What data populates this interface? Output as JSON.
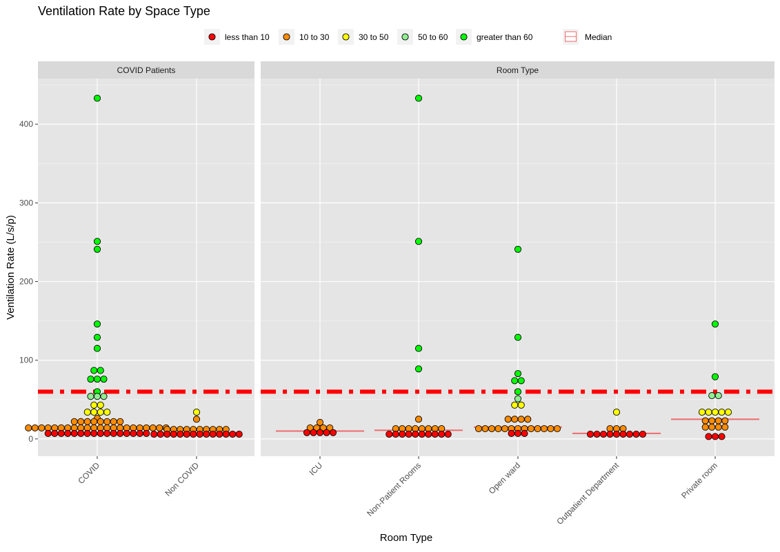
{
  "chart_data": {
    "type": "scatter",
    "title": "Ventilation Rate by Space Type",
    "xlabel": "Room Type",
    "ylabel": "Ventilation Rate (L/s/p)",
    "ylim": [
      -22,
      458
    ],
    "y_ticks": [
      0,
      100,
      200,
      300,
      400
    ],
    "threshold_line": 60,
    "legend": {
      "position": "top",
      "entries": [
        {
          "label": "less than 10",
          "color": "#ff0000"
        },
        {
          "label": "10 to 30",
          "color": "#ff8c00"
        },
        {
          "label": "30 to 50",
          "color": "#ffff00"
        },
        {
          "label": "50 to 60",
          "color": "#90ee90"
        },
        {
          "label": "greater than 60",
          "color": "#00ff00"
        }
      ],
      "median_label": "Median"
    },
    "colors": {
      "panel_bg": "#e5e5e5",
      "grid": "#ffffff",
      "strip_bg": "#d9d9d9",
      "median": "#ef6b6b",
      "threshold": "#ff0000"
    },
    "panels": [
      {
        "strip": "COVID Patients",
        "categories": [
          {
            "label": "COVID",
            "median": null,
            "groups": [
              {
                "y": 433,
                "n": 1,
                "color": "#00ff00"
              },
              {
                "y": 251,
                "n": 1,
                "color": "#00ff00"
              },
              {
                "y": 241,
                "n": 1,
                "color": "#00ff00"
              },
              {
                "y": 146,
                "n": 1,
                "color": "#00ff00"
              },
              {
                "y": 129,
                "n": 1,
                "color": "#00ff00"
              },
              {
                "y": 115,
                "n": 1,
                "color": "#00ff00"
              },
              {
                "y": 87,
                "n": 2,
                "color": "#00ff00"
              },
              {
                "y": 76,
                "n": 3,
                "color": "#00ff00"
              },
              {
                "y": 60,
                "n": 1,
                "color": "#00ff00"
              },
              {
                "y": 54,
                "n": 3,
                "color": "#90ee90"
              },
              {
                "y": 43,
                "n": 2,
                "color": "#ffff00"
              },
              {
                "y": 34,
                "n": 4,
                "color": "#ffff00"
              },
              {
                "y": 26,
                "n": 1,
                "color": "#ff8c00"
              },
              {
                "y": 22,
                "n": 8,
                "color": "#ff8c00"
              },
              {
                "y": 14,
                "n": 22,
                "color": "#ff8c00"
              },
              {
                "y": 7,
                "n": 16,
                "color": "#ff0000"
              }
            ]
          },
          {
            "label": "Non COVID",
            "median": 8,
            "groups": [
              {
                "y": 34,
                "n": 1,
                "color": "#ffff00"
              },
              {
                "y": 25,
                "n": 1,
                "color": "#ff8c00"
              },
              {
                "y": 12,
                "n": 10,
                "color": "#ff8c00"
              },
              {
                "y": 6,
                "n": 14,
                "color": "#ff0000"
              }
            ]
          }
        ]
      },
      {
        "strip": "Room Type",
        "categories": [
          {
            "label": "ICU",
            "median": 10,
            "groups": [
              {
                "y": 21,
                "n": 1,
                "color": "#ff8c00"
              },
              {
                "y": 14,
                "n": 4,
                "color": "#ff8c00"
              },
              {
                "y": 8,
                "n": 5,
                "color": "#ff0000"
              }
            ]
          },
          {
            "label": "Non-Patient Rooms",
            "median": 11,
            "groups": [
              {
                "y": 433,
                "n": 1,
                "color": "#00ff00"
              },
              {
                "y": 251,
                "n": 1,
                "color": "#00ff00"
              },
              {
                "y": 115,
                "n": 1,
                "color": "#00ff00"
              },
              {
                "y": 89,
                "n": 1,
                "color": "#00ff00"
              },
              {
                "y": 25,
                "n": 1,
                "color": "#ff8c00"
              },
              {
                "y": 13,
                "n": 8,
                "color": "#ff8c00"
              },
              {
                "y": 6,
                "n": 10,
                "color": "#ff0000"
              }
            ]
          },
          {
            "label": "Open ward",
            "median": 15,
            "groups": [
              {
                "y": 241,
                "n": 1,
                "color": "#00ff00"
              },
              {
                "y": 129,
                "n": 1,
                "color": "#00ff00"
              },
              {
                "y": 83,
                "n": 1,
                "color": "#00ff00"
              },
              {
                "y": 74,
                "n": 2,
                "color": "#00ff00"
              },
              {
                "y": 60,
                "n": 1,
                "color": "#00ff00"
              },
              {
                "y": 51,
                "n": 1,
                "color": "#90ee90"
              },
              {
                "y": 43,
                "n": 2,
                "color": "#ffff00"
              },
              {
                "y": 25,
                "n": 4,
                "color": "#ff8c00"
              },
              {
                "y": 13,
                "n": 13,
                "color": "#ff8c00"
              },
              {
                "y": 7,
                "n": 3,
                "color": "#ff0000"
              }
            ]
          },
          {
            "label": "Outpatient Department",
            "median": 7,
            "groups": [
              {
                "y": 34,
                "n": 1,
                "color": "#ffff00"
              },
              {
                "y": 13,
                "n": 3,
                "color": "#ff8c00"
              },
              {
                "y": 6,
                "n": 9,
                "color": "#ff0000"
              }
            ]
          },
          {
            "label": "Private room",
            "median": 25,
            "groups": [
              {
                "y": 146,
                "n": 1,
                "color": "#00ff00"
              },
              {
                "y": 79,
                "n": 1,
                "color": "#00ff00"
              },
              {
                "y": 55,
                "n": 2,
                "color": "#90ee90"
              },
              {
                "y": 34,
                "n": 5,
                "color": "#ffff00"
              },
              {
                "y": 23,
                "n": 4,
                "color": "#ff8c00"
              },
              {
                "y": 15,
                "n": 4,
                "color": "#ff8c00"
              },
              {
                "y": 3,
                "n": 3,
                "color": "#ff0000"
              }
            ]
          }
        ]
      }
    ]
  }
}
